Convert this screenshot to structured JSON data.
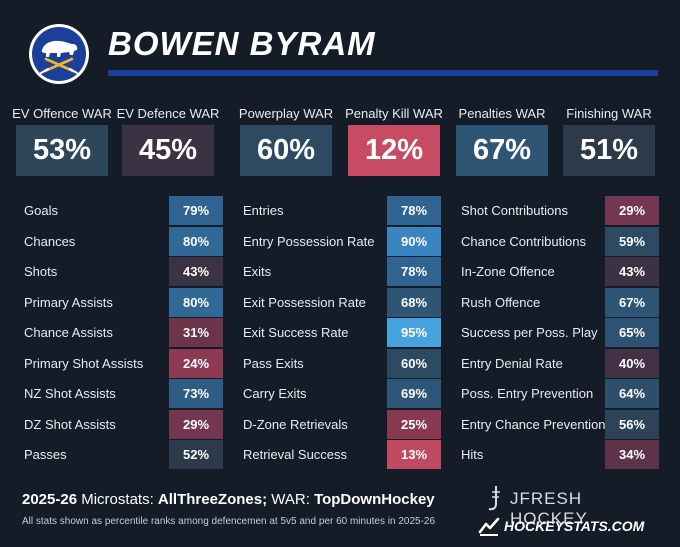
{
  "player": {
    "name": "BOWEN BYRAM"
  },
  "colors": {
    "background": "#141c27",
    "accent_rule": "#1d3f9c",
    "logo_navy": "#1d3f9c",
    "logo_gold": "#f1b82d"
  },
  "war": [
    {
      "label": "EV Offence WAR",
      "value": "53%",
      "color": "#2d4659"
    },
    {
      "label": "EV Defence WAR",
      "value": "45%",
      "color": "#3b3244"
    },
    {
      "label": "Powerplay WAR",
      "value": "60%",
      "color": "#2c4a62"
    },
    {
      "label": "Penalty Kill WAR",
      "value": "12%",
      "color": "#c74b63"
    },
    {
      "label": "Penalties WAR",
      "value": "67%",
      "color": "#2e5573"
    },
    {
      "label": "Finishing WAR",
      "value": "51%",
      "color": "#2c3a4a"
    }
  ],
  "columns": [
    [
      {
        "label": "Goals",
        "value": "79%",
        "color": "#2f6391"
      },
      {
        "label": "Chances",
        "value": "80%",
        "color": "#306896"
      },
      {
        "label": "Shots",
        "value": "43%",
        "color": "#3b3244"
      },
      {
        "label": "Primary Assists",
        "value": "80%",
        "color": "#306896"
      },
      {
        "label": "Chance Assists",
        "value": "31%",
        "color": "#6b3449"
      },
      {
        "label": "Primary Shot Assists",
        "value": "24%",
        "color": "#8c3a52"
      },
      {
        "label": "NZ Shot Assists",
        "value": "73%",
        "color": "#2f5c85"
      },
      {
        "label": "DZ Shot Assists",
        "value": "29%",
        "color": "#743650"
      },
      {
        "label": "Passes",
        "value": "52%",
        "color": "#2d3a4b"
      }
    ],
    [
      {
        "label": "Entries",
        "value": "78%",
        "color": "#2f6391"
      },
      {
        "label": "Entry Possession Rate",
        "value": "90%",
        "color": "#3a85c1"
      },
      {
        "label": "Exits",
        "value": "78%",
        "color": "#2f6391"
      },
      {
        "label": "Exit Possession Rate",
        "value": "68%",
        "color": "#2e5573"
      },
      {
        "label": "Exit Success Rate",
        "value": "95%",
        "color": "#47a3dd"
      },
      {
        "label": "Pass Exits",
        "value": "60%",
        "color": "#2c4a62"
      },
      {
        "label": "Carry Exits",
        "value": "69%",
        "color": "#2e5678"
      },
      {
        "label": "D-Zone Retrievals",
        "value": "25%",
        "color": "#89394f"
      },
      {
        "label": "Retrieval Success",
        "value": "13%",
        "color": "#c04a61"
      }
    ],
    [
      {
        "label": "Shot Contributions",
        "value": "29%",
        "color": "#743650"
      },
      {
        "label": "Chance Contributions",
        "value": "59%",
        "color": "#2c4a62"
      },
      {
        "label": "In-Zone Offence",
        "value": "43%",
        "color": "#3b3244"
      },
      {
        "label": "Rush Offence",
        "value": "67%",
        "color": "#2e5573"
      },
      {
        "label": "Success per Poss. Play",
        "value": "65%",
        "color": "#2e5272"
      },
      {
        "label": "Entry Denial Rate",
        "value": "40%",
        "color": "#423045"
      },
      {
        "label": "Poss. Entry Prevention",
        "value": "64%",
        "color": "#2d4f6b"
      },
      {
        "label": "Entry Chance Prevention",
        "value": "56%",
        "color": "#2c4359"
      },
      {
        "label": "Hits",
        "value": "34%",
        "color": "#5e3349"
      }
    ]
  ],
  "footer": {
    "season": "2025-26",
    "microstats_prefix": "Microstats:",
    "microstats_source": "AllThreeZones;",
    "war_prefix": "WAR:",
    "war_source": "TopDownHockey",
    "note": "All stats shown as percentile ranks among defencemen at 5v5 and per 60 minutes in 2025-26",
    "brand_primary": "JFRESH HOCKEY",
    "brand_secondary": "HOCKEYSTATS.COM"
  }
}
